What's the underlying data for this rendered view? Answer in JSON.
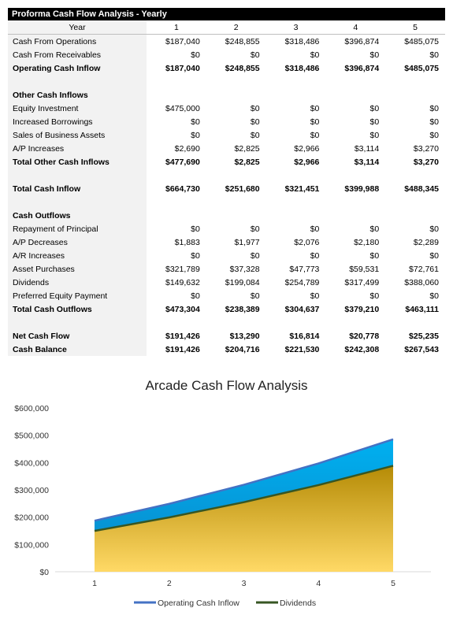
{
  "table": {
    "title": "Proforma Cash Flow Analysis - Yearly",
    "header_label": "Year",
    "years": [
      "1",
      "2",
      "3",
      "4",
      "5"
    ],
    "rows": [
      {
        "type": "row",
        "label": "Cash From Operations",
        "values": [
          "$187,040",
          "$248,855",
          "$318,486",
          "$396,874",
          "$485,075"
        ]
      },
      {
        "type": "row",
        "label": "Cash From Receivables",
        "values": [
          "$0",
          "$0",
          "$0",
          "$0",
          "$0"
        ]
      },
      {
        "type": "bold",
        "label": "Operating Cash Inflow",
        "values": [
          "$187,040",
          "$248,855",
          "$318,486",
          "$396,874",
          "$485,075"
        ]
      },
      {
        "type": "blank"
      },
      {
        "type": "bold",
        "label": "Other Cash Inflows",
        "values": [
          "",
          "",
          "",
          "",
          ""
        ]
      },
      {
        "type": "row",
        "label": "Equity Investment",
        "values": [
          "$475,000",
          "$0",
          "$0",
          "$0",
          "$0"
        ]
      },
      {
        "type": "row",
        "label": "Increased Borrowings",
        "values": [
          "$0",
          "$0",
          "$0",
          "$0",
          "$0"
        ]
      },
      {
        "type": "row",
        "label": "Sales of Business Assets",
        "values": [
          "$0",
          "$0",
          "$0",
          "$0",
          "$0"
        ]
      },
      {
        "type": "row",
        "label": "A/P Increases",
        "values": [
          "$2,690",
          "$2,825",
          "$2,966",
          "$3,114",
          "$3,270"
        ]
      },
      {
        "type": "bold",
        "label": "Total Other Cash Inflows",
        "values": [
          "$477,690",
          "$2,825",
          "$2,966",
          "$3,114",
          "$3,270"
        ]
      },
      {
        "type": "blank"
      },
      {
        "type": "bold",
        "label": "Total Cash Inflow",
        "values": [
          "$664,730",
          "$251,680",
          "$321,451",
          "$399,988",
          "$488,345"
        ]
      },
      {
        "type": "blank"
      },
      {
        "type": "bold",
        "label": "Cash Outflows",
        "values": [
          "",
          "",
          "",
          "",
          ""
        ]
      },
      {
        "type": "row",
        "label": "Repayment of Principal",
        "values": [
          "$0",
          "$0",
          "$0",
          "$0",
          "$0"
        ]
      },
      {
        "type": "row",
        "label": "A/P Decreases",
        "values": [
          "$1,883",
          "$1,977",
          "$2,076",
          "$2,180",
          "$2,289"
        ]
      },
      {
        "type": "row",
        "label": "A/R Increases",
        "values": [
          "$0",
          "$0",
          "$0",
          "$0",
          "$0"
        ]
      },
      {
        "type": "row",
        "label": "Asset Purchases",
        "values": [
          "$321,789",
          "$37,328",
          "$47,773",
          "$59,531",
          "$72,761"
        ]
      },
      {
        "type": "row",
        "label": "Dividends",
        "values": [
          "$149,632",
          "$199,084",
          "$254,789",
          "$317,499",
          "$388,060"
        ]
      },
      {
        "type": "row",
        "label": "Preferred Equity Payment",
        "values": [
          "$0",
          "$0",
          "$0",
          "$0",
          "$0"
        ]
      },
      {
        "type": "bold",
        "label": "Total Cash Outflows",
        "values": [
          "$473,304",
          "$238,389",
          "$304,637",
          "$379,210",
          "$463,111"
        ]
      },
      {
        "type": "blank"
      },
      {
        "type": "bold",
        "label": "Net Cash Flow",
        "values": [
          "$191,426",
          "$13,290",
          "$16,814",
          "$20,778",
          "$25,235"
        ]
      },
      {
        "type": "bold",
        "label": "Cash Balance",
        "values": [
          "$191,426",
          "$204,716",
          "$221,530",
          "$242,308",
          "$267,543"
        ]
      }
    ]
  },
  "chart_data": {
    "type": "area",
    "title": "Arcade Cash Flow Analysis",
    "categories": [
      "1",
      "2",
      "3",
      "4",
      "5"
    ],
    "series": [
      {
        "name": "Operating Cash Inflow",
        "values": [
          187040,
          248855,
          318486,
          396874,
          485075
        ],
        "color": "#4472c4",
        "fill": "#00b0f0"
      },
      {
        "name": "Dividends",
        "values": [
          149632,
          199084,
          254789,
          317499,
          388060
        ],
        "color": "#375623",
        "fill": "#c9a227"
      }
    ],
    "ylim": [
      0,
      600000
    ],
    "yticks": [
      0,
      100000,
      200000,
      300000,
      400000,
      500000,
      600000
    ],
    "ytick_labels": [
      "$0",
      "$100,000",
      "$200,000",
      "$300,000",
      "$400,000",
      "$500,000",
      "$600,000"
    ],
    "legend_position": "bottom",
    "grid": false
  }
}
